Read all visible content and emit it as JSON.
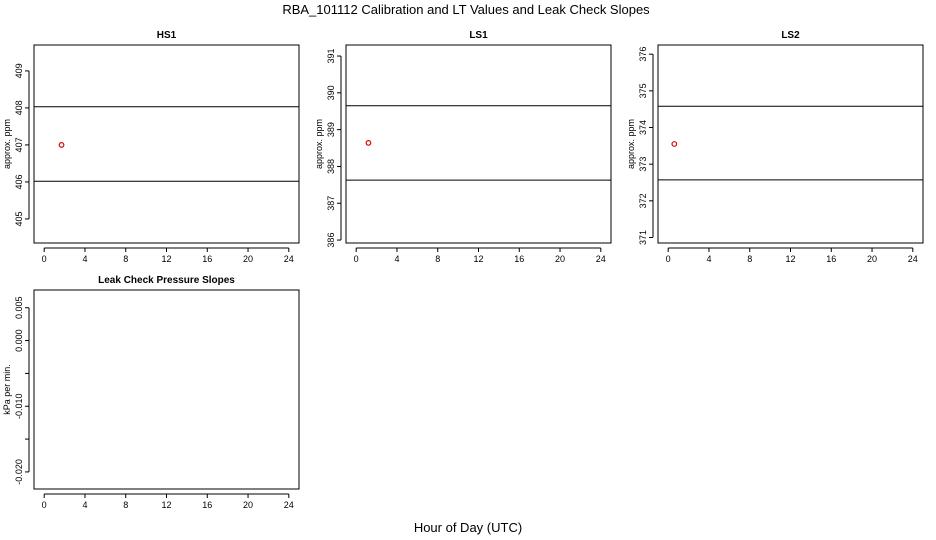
{
  "figure": {
    "title": "RBA_101112  Calibration and LT Values and Leak Check Slopes",
    "xlabel": "Hour of Day (UTC)"
  },
  "chart_data": [
    {
      "type": "scatter",
      "title": "HS1",
      "xlabel": "",
      "ylabel": "approx. ppm",
      "xlim": [
        -1,
        25
      ],
      "ylim": [
        404.35,
        409.7
      ],
      "xticks": [
        0,
        4,
        8,
        12,
        16,
        20,
        24
      ],
      "yticks": [
        405,
        406,
        407,
        408,
        409
      ],
      "hlines": [
        406.02,
        408.03
      ],
      "grid": false,
      "points": [
        {
          "x": 1.7,
          "y": 407.0
        }
      ],
      "point_color": "#dd0000"
    },
    {
      "type": "scatter",
      "title": "LS1",
      "xlabel": "",
      "ylabel": "approx. ppm",
      "xlim": [
        -1,
        25
      ],
      "ylim": [
        385.92,
        391.3
      ],
      "xticks": [
        0,
        4,
        8,
        12,
        16,
        20,
        24
      ],
      "yticks": [
        386,
        387,
        388,
        389,
        390,
        391
      ],
      "hlines": [
        387.63,
        389.65
      ],
      "grid": false,
      "points": [
        {
          "x": 1.2,
          "y": 388.64
        }
      ],
      "point_color": "#dd0000"
    },
    {
      "type": "scatter",
      "title": "LS2",
      "xlabel": "",
      "ylabel": "approx. ppm",
      "xlim": [
        -1,
        25
      ],
      "ylim": [
        370.85,
        376.25
      ],
      "xticks": [
        0,
        4,
        8,
        12,
        16,
        20,
        24
      ],
      "yticks": [
        371,
        372,
        373,
        374,
        375,
        376
      ],
      "hlines": [
        372.57,
        374.58
      ],
      "grid": false,
      "points": [
        {
          "x": 0.6,
          "y": 373.55
        }
      ],
      "point_color": "#dd0000"
    },
    {
      "type": "scatter",
      "title": "Leak Check Pressure Slopes",
      "xlabel": "",
      "ylabel": "kPa per min.",
      "xlim": [
        -1,
        25
      ],
      "ylim": [
        -0.0226,
        0.0077
      ],
      "xticks": [
        0,
        4,
        8,
        12,
        16,
        20,
        24
      ],
      "yticks": [
        -0.02,
        -0.015,
        -0.01,
        -0.005,
        0.0,
        0.005
      ],
      "ytick_labels": [
        "-0.020",
        "",
        "-0.010",
        "",
        "0.000",
        "0.005"
      ],
      "hlines": [],
      "grid": false,
      "points": [],
      "point_color": "#dd0000"
    }
  ]
}
